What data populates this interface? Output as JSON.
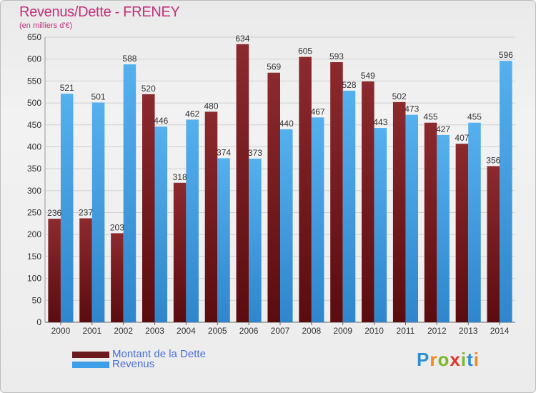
{
  "header": {
    "title": "Revenus/Dette - FRENEY",
    "subtitle": "(en milliers d'€)"
  },
  "legend": {
    "items": [
      {
        "label": "Montant de la Dette",
        "color": "#6b1a1e"
      },
      {
        "label": "Revenus",
        "color": "#3f9fe6"
      }
    ]
  },
  "brand": {
    "logo_text": "Proxiti"
  },
  "chart_data": {
    "type": "bar",
    "title": "Revenus/Dette - FRENEY",
    "subtitle": "(en milliers d'€)",
    "categories": [
      "2000",
      "2001",
      "2002",
      "2003",
      "2004",
      "2005",
      "2006",
      "2007",
      "2008",
      "2009",
      "2010",
      "2011",
      "2012",
      "2013",
      "2014"
    ],
    "series": [
      {
        "name": "Montant de la Dette",
        "color": "#7a1f24",
        "values": [
          236,
          237,
          203,
          520,
          318,
          480,
          634,
          569,
          605,
          593,
          549,
          502,
          455,
          407,
          356
        ]
      },
      {
        "name": "Revenus",
        "color": "#4aa6e8",
        "values": [
          521,
          501,
          588,
          446,
          462,
          374,
          373,
          440,
          467,
          528,
          443,
          473,
          427,
          455,
          596
        ]
      }
    ],
    "ylim": [
      0,
      650
    ],
    "yticks": [
      0,
      50,
      100,
      150,
      200,
      250,
      300,
      350,
      400,
      450,
      500,
      550,
      600,
      650
    ],
    "grid": true,
    "legend_position": "bottom-left"
  }
}
